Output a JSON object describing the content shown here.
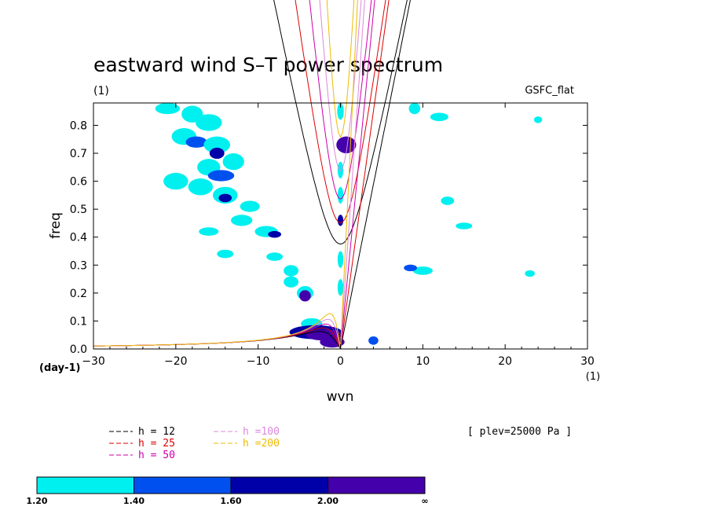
{
  "chart_data": {
    "type": "heatmap",
    "title": "eastward wind S–T power spectrum",
    "title_units": "(1)",
    "source_label": "GSFC_flat",
    "xlabel": "wvn",
    "ylabel": "freq",
    "x_units_label": "(1)",
    "y_units_label": "(day-1)",
    "xlim": [
      -30,
      30
    ],
    "ylim": [
      0,
      0.88
    ],
    "x_ticks": [
      -30,
      -20,
      -10,
      0,
      10,
      20,
      30
    ],
    "y_ticks": [
      0.0,
      0.1,
      0.2,
      0.3,
      0.4,
      0.5,
      0.6,
      0.7,
      0.8
    ],
    "x_tick_labels": [
      "−30",
      "−20",
      "−10",
      "0",
      "10",
      "20",
      "30"
    ],
    "y_tick_labels": [
      "0.0",
      "0.1",
      "0.2",
      "0.3",
      "0.4",
      "0.5",
      "0.6",
      "0.7",
      "0.8"
    ],
    "annotation": "[ plev=25000 Pa ]",
    "series": [
      {
        "name": "h = 12",
        "color": "#000000",
        "h": 12
      },
      {
        "name": "h = 25",
        "color": "#dd0000",
        "h": 25
      },
      {
        "name": "h = 50",
        "color": "#cc00aa",
        "h": 50
      },
      {
        "name": "h =100",
        "color": "#dd88dd",
        "h": 100
      },
      {
        "name": "h =200",
        "color": "#eebb00",
        "h": 200
      }
    ],
    "colorbar": {
      "levels": [
        "1.20",
        "1.40",
        "1.60",
        "2.00",
        "∞"
      ],
      "colors": [
        "#00f0f0",
        "#0050f0",
        "#0000a8",
        "#4400aa"
      ]
    },
    "power_regions": [
      {
        "x": -21,
        "y": 0.86,
        "rx": 1.5,
        "ry": 0.02,
        "level": 0
      },
      {
        "x": -18,
        "y": 0.84,
        "rx": 1.3,
        "ry": 0.03,
        "level": 0
      },
      {
        "x": -16,
        "y": 0.81,
        "rx": 1.6,
        "ry": 0.03,
        "level": 0
      },
      {
        "x": -19,
        "y": 0.76,
        "rx": 1.5,
        "ry": 0.03,
        "level": 0
      },
      {
        "x": -17.5,
        "y": 0.74,
        "rx": 1.3,
        "ry": 0.02,
        "level": 1
      },
      {
        "x": -15,
        "y": 0.73,
        "rx": 1.6,
        "ry": 0.03,
        "level": 0
      },
      {
        "x": -15,
        "y": 0.7,
        "rx": 0.9,
        "ry": 0.02,
        "level": 2
      },
      {
        "x": -13,
        "y": 0.67,
        "rx": 1.3,
        "ry": 0.03,
        "level": 0
      },
      {
        "x": -16,
        "y": 0.65,
        "rx": 1.4,
        "ry": 0.03,
        "level": 0
      },
      {
        "x": -14.5,
        "y": 0.62,
        "rx": 1.6,
        "ry": 0.02,
        "level": 1
      },
      {
        "x": -20,
        "y": 0.6,
        "rx": 1.5,
        "ry": 0.03,
        "level": 0
      },
      {
        "x": -17,
        "y": 0.58,
        "rx": 1.5,
        "ry": 0.03,
        "level": 0
      },
      {
        "x": -14,
        "y": 0.55,
        "rx": 1.5,
        "ry": 0.03,
        "level": 0
      },
      {
        "x": -14,
        "y": 0.54,
        "rx": 0.8,
        "ry": 0.015,
        "level": 2
      },
      {
        "x": -11,
        "y": 0.51,
        "rx": 1.2,
        "ry": 0.02,
        "level": 0
      },
      {
        "x": -12,
        "y": 0.46,
        "rx": 1.3,
        "ry": 0.02,
        "level": 0
      },
      {
        "x": -9,
        "y": 0.42,
        "rx": 1.4,
        "ry": 0.02,
        "level": 0
      },
      {
        "x": -8,
        "y": 0.41,
        "rx": 0.8,
        "ry": 0.012,
        "level": 2
      },
      {
        "x": -16,
        "y": 0.42,
        "rx": 1.2,
        "ry": 0.015,
        "level": 0
      },
      {
        "x": -14,
        "y": 0.34,
        "rx": 1.0,
        "ry": 0.015,
        "level": 0
      },
      {
        "x": -8,
        "y": 0.33,
        "rx": 1.0,
        "ry": 0.015,
        "level": 0
      },
      {
        "x": -6,
        "y": 0.28,
        "rx": 0.9,
        "ry": 0.02,
        "level": 0
      },
      {
        "x": -6,
        "y": 0.24,
        "rx": 0.9,
        "ry": 0.02,
        "level": 0
      },
      {
        "x": -4.3,
        "y": 0.2,
        "rx": 1.0,
        "ry": 0.025,
        "level": 0
      },
      {
        "x": -4.3,
        "y": 0.19,
        "rx": 0.7,
        "ry": 0.02,
        "level": 3
      },
      {
        "x": -3.5,
        "y": 0.09,
        "rx": 1.3,
        "ry": 0.02,
        "level": 0
      },
      {
        "x": -3,
        "y": 0.06,
        "rx": 3.2,
        "ry": 0.025,
        "level": 2
      },
      {
        "x": -2,
        "y": 0.05,
        "rx": 2.2,
        "ry": 0.02,
        "level": 3
      },
      {
        "x": -1,
        "y": 0.025,
        "rx": 1.5,
        "ry": 0.02,
        "level": 3
      },
      {
        "x": 0,
        "y": 0.85,
        "rx": 0.4,
        "ry": 0.03,
        "level": 0
      },
      {
        "x": 0.7,
        "y": 0.73,
        "rx": 1.2,
        "ry": 0.03,
        "level": 3
      },
      {
        "x": 0,
        "y": 0.64,
        "rx": 0.35,
        "ry": 0.03,
        "level": 0
      },
      {
        "x": 0,
        "y": 0.55,
        "rx": 0.35,
        "ry": 0.03,
        "level": 0
      },
      {
        "x": 0,
        "y": 0.46,
        "rx": 0.35,
        "ry": 0.02,
        "level": 2
      },
      {
        "x": 0,
        "y": 0.32,
        "rx": 0.35,
        "ry": 0.03,
        "level": 0
      },
      {
        "x": 0,
        "y": 0.22,
        "rx": 0.35,
        "ry": 0.03,
        "level": 0
      },
      {
        "x": 4,
        "y": 0.03,
        "rx": 0.6,
        "ry": 0.015,
        "level": 1
      },
      {
        "x": 9,
        "y": 0.86,
        "rx": 0.7,
        "ry": 0.02,
        "level": 0
      },
      {
        "x": 12,
        "y": 0.83,
        "rx": 1.1,
        "ry": 0.015,
        "level": 0
      },
      {
        "x": 13,
        "y": 0.53,
        "rx": 0.8,
        "ry": 0.015,
        "level": 0
      },
      {
        "x": 10,
        "y": 0.28,
        "rx": 1.2,
        "ry": 0.015,
        "level": 0
      },
      {
        "x": 8.5,
        "y": 0.29,
        "rx": 0.8,
        "ry": 0.012,
        "level": 1
      },
      {
        "x": 15,
        "y": 0.44,
        "rx": 1.0,
        "ry": 0.012,
        "level": 0
      },
      {
        "x": 23,
        "y": 0.27,
        "rx": 0.6,
        "ry": 0.012,
        "level": 0
      },
      {
        "x": 24,
        "y": 0.82,
        "rx": 0.5,
        "ry": 0.012,
        "level": 0
      }
    ]
  }
}
